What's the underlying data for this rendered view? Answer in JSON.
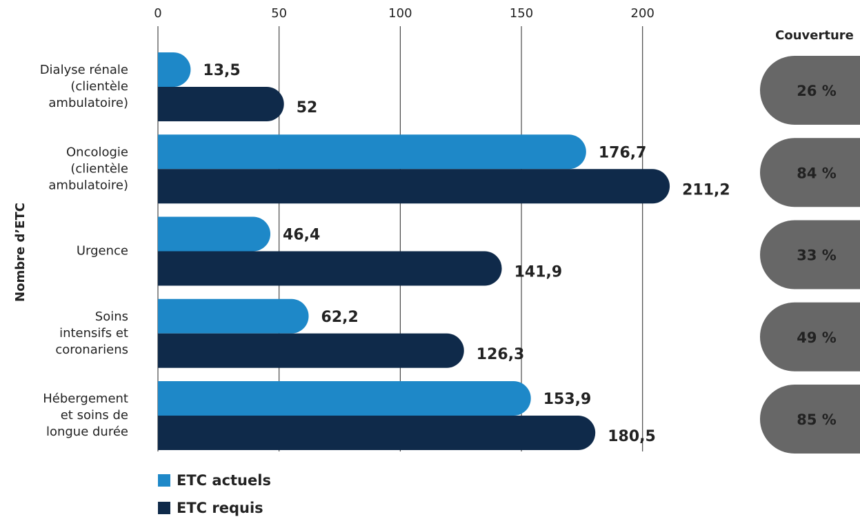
{
  "chart_data": {
    "type": "bar",
    "y_label": "Nombre d’ETC",
    "categories": [
      [
        "Dialyse rénale",
        "(clientèle",
        "ambulatoire)"
      ],
      [
        "Oncologie",
        "(clientèle",
        "ambulatoire)"
      ],
      [
        "Urgence"
      ],
      [
        "Soins",
        "intensifs et",
        "coronariens"
      ],
      [
        "Hébergement",
        "et soins de",
        "longue durée"
      ]
    ],
    "series": [
      {
        "name": "ETC actuels",
        "color": "#1e88c8",
        "values": [
          13.5,
          176.7,
          46.4,
          62.2,
          153.9
        ],
        "value_labels": [
          "13,5",
          "176,7",
          "46,4",
          "62,2",
          "153,9"
        ]
      },
      {
        "name": "ETC requis",
        "color": "#0f2a4a",
        "values": [
          52,
          211.2,
          141.9,
          126.3,
          180.5
        ],
        "value_labels": [
          "52",
          "211,2",
          "141,9",
          "126,3",
          "180,5"
        ]
      }
    ],
    "xlim": [
      0,
      220
    ],
    "xticks": [
      0,
      50,
      100,
      150,
      200
    ],
    "grid": true,
    "coverage": {
      "title": "Couverture",
      "color": "#676767",
      "title_color": "#1e88c8",
      "values": [
        26,
        84,
        33,
        49,
        85
      ],
      "value_labels": [
        "26 %",
        "84 %",
        "33 %",
        "49 %",
        "85 %"
      ]
    }
  }
}
